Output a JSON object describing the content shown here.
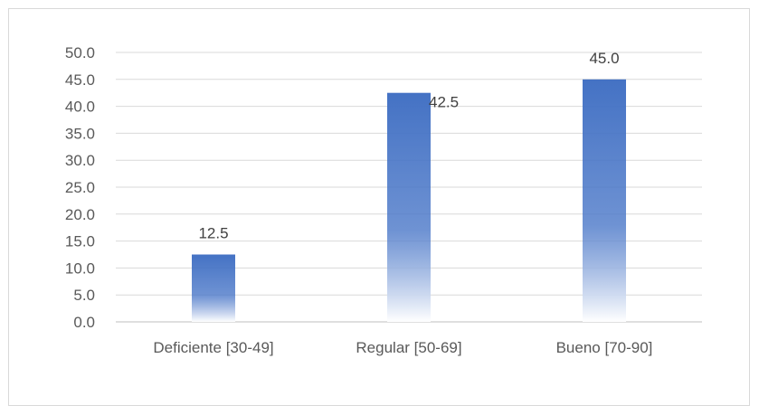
{
  "chart_data": {
    "type": "bar",
    "categories": [
      "Deficiente [30-49]",
      "Regular [50-69]",
      "Bueno [70-90]"
    ],
    "values": [
      12.5,
      42.5,
      45.0
    ],
    "data_labels": [
      "12.5",
      "42.5",
      "45.0"
    ],
    "ylim": [
      0,
      50
    ],
    "y_ticks": [
      "0.0",
      "5.0",
      "10.0",
      "15.0",
      "20.0",
      "25.0",
      "30.0",
      "35.0",
      "40.0",
      "45.0",
      "50.0"
    ],
    "y_tick_values": [
      0,
      5,
      10,
      15,
      20,
      25,
      30,
      35,
      40,
      45,
      50
    ],
    "title": "",
    "xlabel": "",
    "ylabel": "",
    "grid": true,
    "legend": "none",
    "colors": {
      "bar_top": "#4472c4",
      "bar_bottom": "#ffffff",
      "grid": "#d9d9d9",
      "axis": "#bfbfbf",
      "frame": "#d9d9d9"
    }
  }
}
